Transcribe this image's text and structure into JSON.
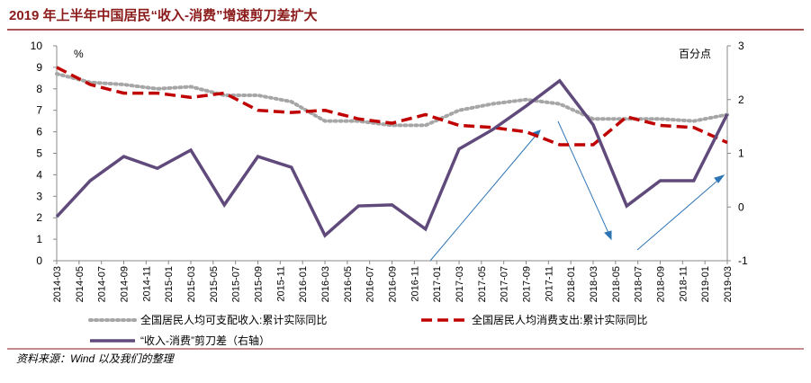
{
  "chart_data": {
    "type": "line",
    "title": "2019 年上半年中国居民“收入-消费”增速剪刀差扩大",
    "ylabel": "%",
    "y2label": "百分点",
    "source": "资料来源：Wind 以及我们的整理",
    "x": [
      "2014-03",
      "2014-06",
      "2014-09",
      "2014-12",
      "2015-03",
      "2015-06",
      "2015-09",
      "2015-12",
      "2016-03",
      "2016-06",
      "2016-09",
      "2016-12",
      "2017-03",
      "2017-06",
      "2017-09",
      "2017-12",
      "2018-03",
      "2018-06",
      "2018-09",
      "2018-12",
      "2019-03"
    ],
    "xticks": [
      "2014-03",
      "2014-05",
      "2014-07",
      "2014-09",
      "2014-11",
      "2015-01",
      "2015-03",
      "2015-05",
      "2015-07",
      "2015-09",
      "2015-11",
      "2016-01",
      "2016-03",
      "2016-05",
      "2016-07",
      "2016-09",
      "2016-11",
      "2017-01",
      "2017-03",
      "2017-05",
      "2017-07",
      "2017-09",
      "2017-11",
      "2018-01",
      "2018-03",
      "2018-05",
      "2018-07",
      "2018-09",
      "2018-11",
      "2019-01",
      "2019-03"
    ],
    "ylim": [
      0,
      10
    ],
    "yticks": [
      0,
      1,
      2,
      3,
      4,
      5,
      6,
      7,
      8,
      9,
      10
    ],
    "y2lim": [
      -1,
      3
    ],
    "y2ticks": [
      -1,
      0,
      1,
      2,
      3
    ],
    "series": [
      {
        "name": "全国居民人均可支配收入:累计实际同比",
        "color": "#a6a6a6",
        "style": "dotted",
        "values": [
          8.7,
          8.3,
          8.2,
          8.0,
          8.1,
          7.7,
          7.7,
          7.4,
          6.5,
          6.5,
          6.3,
          6.3,
          7.0,
          7.3,
          7.5,
          7.3,
          6.6,
          6.6,
          6.6,
          6.5,
          6.8
        ]
      },
      {
        "name": "全国居民人均消费支出:累计实际同比",
        "color": "#c00000",
        "style": "dashed",
        "values": [
          9.0,
          8.2,
          7.8,
          7.8,
          7.6,
          7.8,
          7.0,
          6.9,
          7.0,
          6.6,
          6.4,
          6.8,
          6.3,
          6.2,
          6.0,
          5.4,
          5.4,
          6.7,
          6.3,
          6.2,
          5.5
        ]
      },
      {
        "name": "“收入-消费”剪刀差（右轴）",
        "color": "#604a7b",
        "style": "solid",
        "axis": "y2",
        "values": [
          -0.18,
          0.49,
          0.94,
          0.72,
          1.06,
          0.04,
          0.94,
          0.74,
          -0.53,
          0.02,
          0.04,
          -0.41,
          1.08,
          1.44,
          1.88,
          2.35,
          1.53,
          0.02,
          0.49,
          0.49,
          1.73
        ]
      }
    ]
  }
}
